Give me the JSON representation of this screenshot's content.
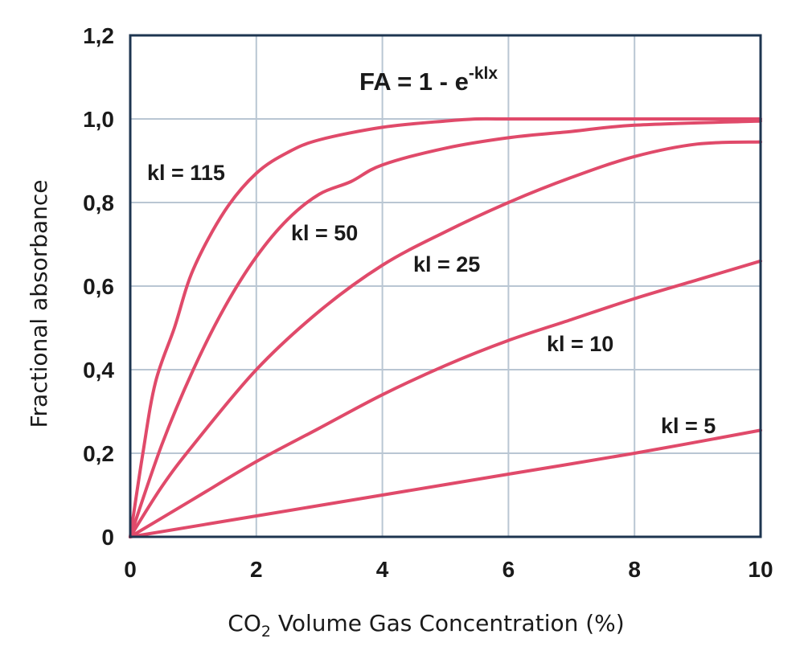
{
  "chart_data": {
    "type": "line",
    "formula": {
      "base": "FA = 1 - e",
      "exponent": "-klx"
    },
    "xlabel": {
      "prefix": "CO",
      "subscript": "2",
      "suffix": " Volume Gas Concentration (%)"
    },
    "ylabel": "Fractional absorbance",
    "xlim": [
      0,
      10
    ],
    "ylim": [
      0,
      1.2
    ],
    "x_ticks": [
      {
        "value": 0,
        "label": "0"
      },
      {
        "value": 2,
        "label": "2"
      },
      {
        "value": 4,
        "label": "4"
      },
      {
        "value": 6,
        "label": "6"
      },
      {
        "value": 8,
        "label": "8"
      },
      {
        "value": 10,
        "label": "10"
      }
    ],
    "y_ticks": [
      {
        "value": 0,
        "label": "0"
      },
      {
        "value": 0.2,
        "label": "0,2"
      },
      {
        "value": 0.4,
        "label": "0,4"
      },
      {
        "value": 0.6,
        "label": "0,6"
      },
      {
        "value": 0.8,
        "label": "0,8"
      },
      {
        "value": 1.0,
        "label": "1,0"
      },
      {
        "value": 1.2,
        "label": "1,2"
      }
    ],
    "grid": true,
    "line_color": "#e04a6a",
    "axis_color": "#1e3550",
    "grid_color": "#b9c6d3",
    "series": [
      {
        "name": "kl = 115",
        "x": [
          0,
          0.2,
          0.4,
          0.7,
          1.0,
          1.5,
          2.0,
          2.5,
          3.0,
          4.0,
          5.0,
          5.5,
          6.0,
          8.0,
          10.0
        ],
        "y": [
          0,
          0.2,
          0.37,
          0.5,
          0.64,
          0.78,
          0.87,
          0.92,
          0.95,
          0.98,
          0.995,
          1.0,
          1.0,
          1.0,
          1.0
        ]
      },
      {
        "name": "kl = 50",
        "x": [
          0,
          0.5,
          1.0,
          1.5,
          2.0,
          2.5,
          3.0,
          3.5,
          4.0,
          5.0,
          6.0,
          7.0,
          8.0,
          10.0
        ],
        "y": [
          0,
          0.22,
          0.4,
          0.55,
          0.67,
          0.76,
          0.82,
          0.85,
          0.89,
          0.93,
          0.955,
          0.97,
          0.985,
          0.995
        ]
      },
      {
        "name": "kl = 25",
        "x": [
          0,
          0.5,
          1.0,
          2.0,
          3.0,
          4.0,
          5.0,
          6.0,
          7.0,
          8.0,
          9.0,
          10.0
        ],
        "y": [
          0,
          0.12,
          0.22,
          0.4,
          0.54,
          0.65,
          0.73,
          0.8,
          0.86,
          0.91,
          0.94,
          0.945
        ]
      },
      {
        "name": "kl = 10",
        "x": [
          0,
          1.0,
          2.0,
          3.0,
          4.0,
          5.0,
          6.0,
          7.0,
          8.0,
          9.0,
          10.0
        ],
        "y": [
          0,
          0.09,
          0.18,
          0.26,
          0.34,
          0.41,
          0.47,
          0.52,
          0.57,
          0.615,
          0.66
        ]
      },
      {
        "name": "kl = 5",
        "x": [
          0,
          2.0,
          4.0,
          6.0,
          8.0,
          10.0
        ],
        "y": [
          0,
          0.05,
          0.1,
          0.15,
          0.2,
          0.255
        ]
      }
    ]
  }
}
